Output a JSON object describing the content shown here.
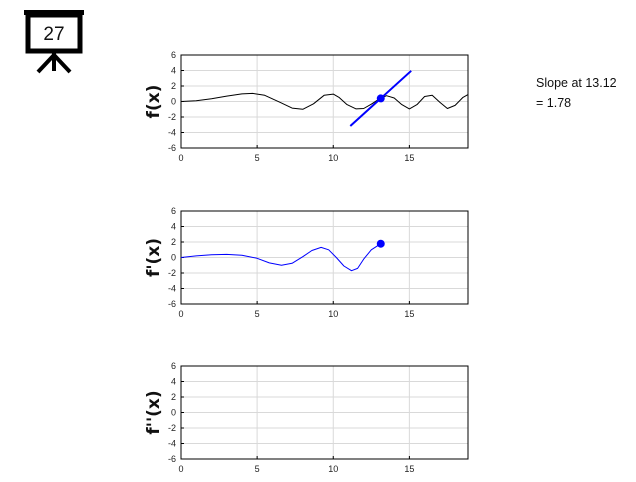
{
  "frame_label": "27",
  "annotation": {
    "line1": "Slope at 13.12",
    "line2": "= 1.78"
  },
  "colors": {
    "function": "#000000",
    "derivative": "#0000ff",
    "tangent": "#0000ff",
    "grid": "#d9d9d9",
    "axes": "#000000"
  },
  "chart_data": [
    {
      "type": "line",
      "ylabel": "f(x)",
      "xlim": [
        0,
        18.85
      ],
      "ylim": [
        -6,
        6
      ],
      "xticks": [
        "0",
        "5",
        "10",
        "15"
      ],
      "yticks": [
        "6",
        "4",
        "2",
        "0",
        "-2",
        "-4",
        "-6"
      ],
      "grid": true,
      "series": [
        {
          "x": [
            0,
            1,
            2,
            3,
            4,
            4.7,
            5.5,
            6.5,
            7.3,
            8.0,
            8.7,
            9.4,
            10.0,
            10.4,
            10.9,
            11.5,
            12.0,
            12.5,
            13.0,
            13.5,
            14.0,
            14.5,
            15.0,
            15.5,
            16.0,
            16.5,
            17.0,
            17.5,
            18.0,
            18.5,
            18.85
          ],
          "y": [
            0,
            0.1,
            0.35,
            0.7,
            0.98,
            1.05,
            0.8,
            -0.1,
            -0.85,
            -1.0,
            -0.3,
            0.8,
            0.95,
            0.5,
            -0.4,
            -0.95,
            -0.9,
            -0.35,
            0.3,
            0.75,
            0.45,
            -0.4,
            -0.95,
            -0.4,
            0.65,
            0.8,
            -0.1,
            -0.9,
            -0.5,
            0.5,
            0.9
          ]
        }
      ],
      "tangent": {
        "x": 13.12,
        "y": 0.4,
        "slope": 1.78,
        "x_range": [
          11.12,
          15.12
        ]
      }
    },
    {
      "type": "line",
      "ylabel": "f'(x)",
      "xlim": [
        0,
        18.85
      ],
      "ylim": [
        -6,
        6
      ],
      "xticks": [
        "0",
        "5",
        "10",
        "15"
      ],
      "yticks": [
        "6",
        "4",
        "2",
        "0",
        "-2",
        "-4",
        "-6"
      ],
      "grid": true,
      "series": [
        {
          "x": [
            0,
            1,
            2,
            3,
            4,
            5,
            5.8,
            6.6,
            7.3,
            8.0,
            8.6,
            9.2,
            9.7,
            10.2,
            10.7,
            11.2,
            11.6,
            12.0,
            12.5,
            13.12
          ],
          "y": [
            0,
            0.2,
            0.35,
            0.4,
            0.3,
            -0.1,
            -0.7,
            -1.0,
            -0.75,
            0.1,
            0.9,
            1.3,
            1.0,
            0.0,
            -1.1,
            -1.7,
            -1.4,
            -0.2,
            1.0,
            1.78
          ]
        }
      ],
      "marker": {
        "x": 13.12,
        "y": 1.78
      }
    },
    {
      "type": "line",
      "ylabel": "f''(x)",
      "xlim": [
        0,
        18.85
      ],
      "ylim": [
        -6,
        6
      ],
      "xticks": [
        "0",
        "5",
        "10",
        "15"
      ],
      "yticks": [
        "6",
        "4",
        "2",
        "0",
        "-2",
        "-4",
        "-6"
      ],
      "grid": true,
      "series": []
    }
  ]
}
